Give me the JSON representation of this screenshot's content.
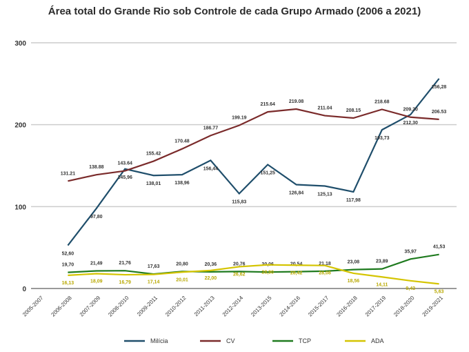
{
  "chart_data": {
    "type": "line",
    "title": "Área total do Grande Rio sob Controle de cada Grupo Armado (2006 a 2021)",
    "xlabel": "",
    "ylabel": "",
    "ylim": [
      0,
      300
    ],
    "yticks": [
      "0",
      "100",
      "200",
      "300"
    ],
    "grid": "horizontal",
    "legend_placement": "bottom",
    "categories": [
      "2005-2007",
      "2006-2008",
      "2007-2009",
      "2008-2010",
      "2009-2011",
      "2010-2012",
      "2011-2013",
      "2012-2014",
      "2013-2015",
      "2014-2016",
      "2015-2017",
      "2016-2018",
      "2017-2019",
      "2018-2020",
      "2019-2021"
    ],
    "series": [
      {
        "name": "Milícia",
        "color": "#1f4e6b",
        "values": [
          null,
          52.6,
          97.8,
          145.96,
          138.01,
          138.96,
          156.44,
          115.83,
          151.25,
          126.84,
          125.13,
          117.98,
          193.73,
          212.3,
          256.28
        ],
        "labels": [
          "",
          "52,60",
          "97,80",
          "145,96",
          "138,01",
          "138,96",
          "156,44",
          "115,83",
          "151,25",
          "126,84",
          "125,13",
          "117,98",
          "193,73",
          "212,30",
          "256,28"
        ]
      },
      {
        "name": "CV",
        "color": "#7a2a2a",
        "values": [
          null,
          131.21,
          138.88,
          143.64,
          155.42,
          170.48,
          186.77,
          199.19,
          215.64,
          219.08,
          211.04,
          208.15,
          218.68,
          209.2,
          206.53
        ],
        "labels": [
          "",
          "131.21",
          "138.88",
          "143.64",
          "155.42",
          "170.48",
          "186.77",
          "199.19",
          "215.64",
          "219.08",
          "211.04",
          "208.15",
          "218.68",
          "209.20",
          "206.53"
        ]
      },
      {
        "name": "TCP",
        "color": "#1e7a1e",
        "values": [
          null,
          19.7,
          21.49,
          21.76,
          17.63,
          20.8,
          20.36,
          20.76,
          20.06,
          20.54,
          21.18,
          23.08,
          23.89,
          35.97,
          41.53
        ],
        "labels": [
          "",
          "19,70",
          "21,49",
          "21,76",
          "17,63",
          "20,80",
          "20,36",
          "20,76",
          "20,06",
          "20,54",
          "21,18",
          "23,08",
          "23,89",
          "35,97",
          "41,53"
        ]
      },
      {
        "name": "ADA",
        "color": "#d4c400",
        "values": [
          null,
          16.13,
          18.09,
          16.79,
          17.14,
          20.01,
          22.0,
          26.62,
          28.9,
          28.42,
          28.08,
          18.56,
          14.11,
          9.43,
          5.63
        ],
        "labels": [
          "",
          "16,13",
          "18,09",
          "16,79",
          "17,14",
          "20,01",
          "22,00",
          "26,62",
          "28,90",
          "28,42",
          "28,08",
          "18,56",
          "14,11",
          "9,43",
          "5,63"
        ]
      }
    ]
  }
}
